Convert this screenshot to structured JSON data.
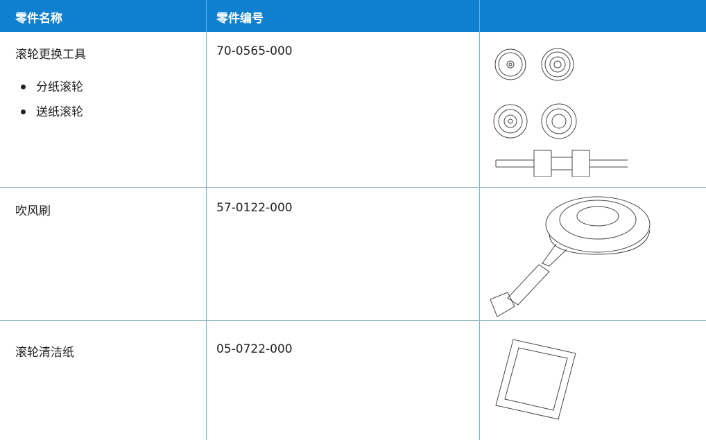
{
  "table": {
    "header": [
      "零件名称",
      "零件编号"
    ],
    "rows": [
      {
        "name": "滚轮更换工具",
        "items": [
          "分纸滚轮",
          "送纸滚轮"
        ],
        "part_number": "70-0565-000"
      },
      {
        "name": "吹风刷",
        "part_number": "57-0122-000"
      },
      {
        "name": "滚轮清洁纸",
        "part_number": "05-0722-000"
      }
    ]
  }
}
